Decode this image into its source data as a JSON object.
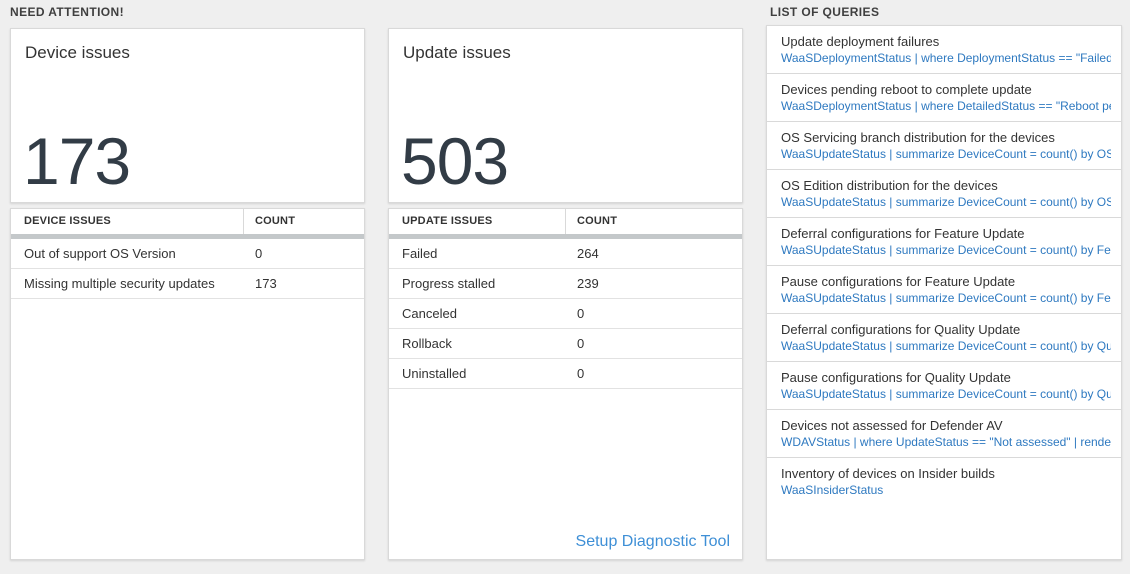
{
  "need_attention": {
    "label": "NEED ATTENTION!"
  },
  "device_card": {
    "title": "Device issues",
    "value": "173",
    "table": {
      "headers": [
        "DEVICE ISSUES",
        "COUNT"
      ],
      "rows": [
        {
          "label": "Out of support OS Version",
          "count": "0"
        },
        {
          "label": "Missing multiple security updates",
          "count": "173"
        }
      ]
    }
  },
  "update_card": {
    "title": "Update issues",
    "value": "503",
    "table": {
      "headers": [
        "UPDATE ISSUES",
        "COUNT"
      ],
      "rows": [
        {
          "label": "Failed",
          "count": "264"
        },
        {
          "label": "Progress stalled",
          "count": "239"
        },
        {
          "label": "Canceled",
          "count": "0"
        },
        {
          "label": "Rollback",
          "count": "0"
        },
        {
          "label": "Uninstalled",
          "count": "0"
        }
      ]
    },
    "link": "Setup Diagnostic Tool"
  },
  "queries": {
    "label": "LIST OF QUERIES",
    "items": [
      {
        "title": "Update deployment failures",
        "query": "WaaSDeploymentStatus | where DeploymentStatus == \"Failed\" |..."
      },
      {
        "title": "Devices pending reboot to complete update",
        "query": "WaaSDeploymentStatus | where DetailedStatus == \"Reboot pend..."
      },
      {
        "title": "OS Servicing branch distribution for the devices",
        "query": "WaaSUpdateStatus | summarize DeviceCount = count() by OSSer..."
      },
      {
        "title": "OS Edition distribution for the devices",
        "query": "WaaSUpdateStatus | summarize DeviceCount = count() by OSEdit..."
      },
      {
        "title": "Deferral configurations for Feature Update",
        "query": "WaaSUpdateStatus | summarize DeviceCount = count() by Featur..."
      },
      {
        "title": "Pause configurations for Feature Update",
        "query": "WaaSUpdateStatus | summarize DeviceCount = count() by Featur..."
      },
      {
        "title": "Deferral configurations for Quality Update",
        "query": "WaaSUpdateStatus | summarize DeviceCount = count() by Qualit..."
      },
      {
        "title": "Pause configurations for Quality Update",
        "query": "WaaSUpdateStatus | summarize DeviceCount = count() by Qualit..."
      },
      {
        "title": "Devices not assessed for Defender AV",
        "query": "WDAVStatus | where UpdateStatus == \"Not assessed\" | render ta..."
      },
      {
        "title": "Inventory of devices on Insider builds",
        "query": "WaaSInsiderStatus"
      }
    ]
  },
  "colors": {
    "page_bg": "#efefef",
    "card_bg": "#ffffff",
    "card_border": "#d9d9d9",
    "header_bar": "#c4c8ca",
    "big_number": "#323c46",
    "query_link_blue": "#2e79c0",
    "diag_link_blue": "#3e8fd6"
  }
}
